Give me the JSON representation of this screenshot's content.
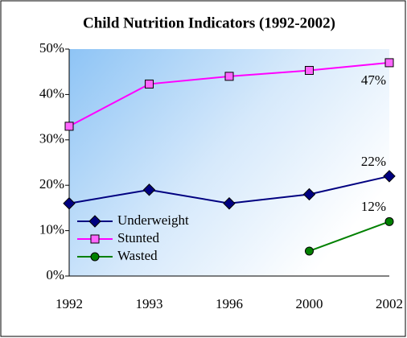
{
  "chart_data": {
    "type": "line",
    "title": "Child Nutrition Indicators (1992-2002)",
    "categories": [
      "1992",
      "1993",
      "1996",
      "2000",
      "2002"
    ],
    "series": [
      {
        "name": "Underweight",
        "color": "#000080",
        "marker": "diamond",
        "marker_color": "#000080",
        "values": [
          16,
          19,
          16,
          18,
          22
        ],
        "value_labels": [
          null,
          null,
          null,
          null,
          "22%"
        ]
      },
      {
        "name": "Stunted",
        "color": "#ff00ff",
        "marker": "square",
        "marker_color": "#ff66ff",
        "values": [
          33,
          42.3,
          44,
          45.3,
          47
        ],
        "value_labels": [
          null,
          null,
          null,
          null,
          "47%"
        ]
      },
      {
        "name": "Wasted",
        "color": "#008000",
        "marker": "circle",
        "marker_color": "#008000",
        "values": [
          null,
          null,
          null,
          5.5,
          12
        ],
        "value_labels": [
          null,
          null,
          null,
          null,
          "12%"
        ]
      }
    ],
    "ylim": [
      0,
      50
    ],
    "yticks": [
      {
        "value": 0,
        "label": "0%"
      },
      {
        "value": 10,
        "label": "10%"
      },
      {
        "value": 20,
        "label": "20%"
      },
      {
        "value": 30,
        "label": "30%"
      },
      {
        "value": 40,
        "label": "40%"
      },
      {
        "value": 50,
        "label": "50%"
      }
    ],
    "legend": "lower left"
  }
}
